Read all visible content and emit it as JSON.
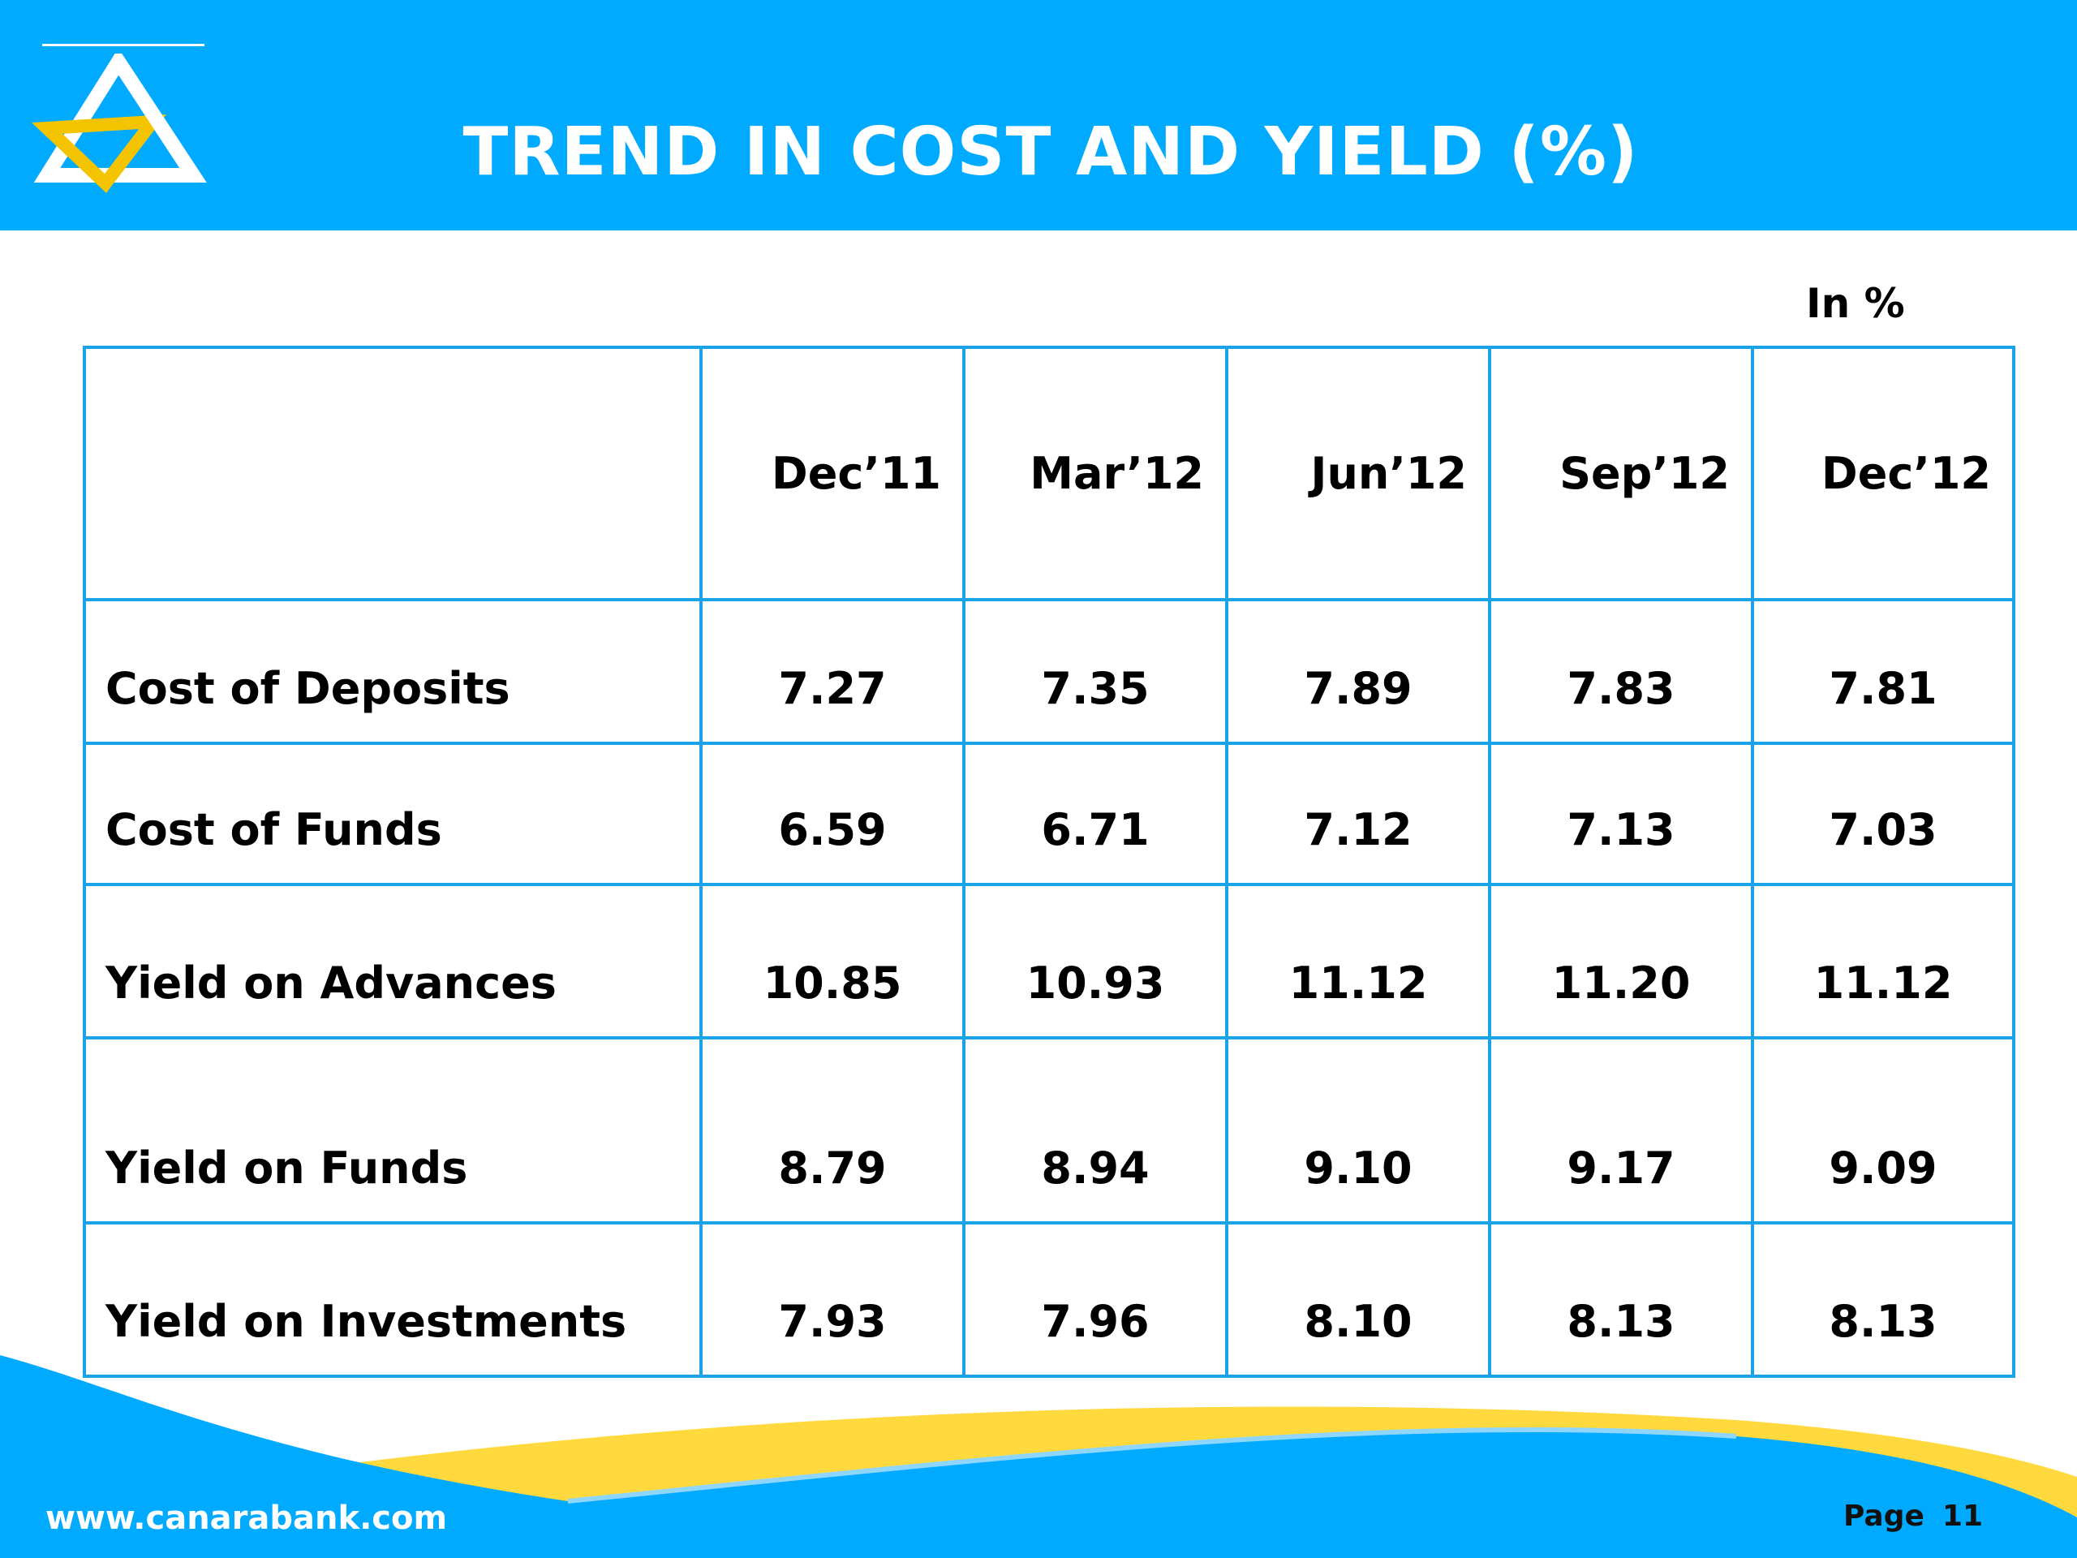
{
  "header": {
    "title": "TREND IN COST AND YIELD (%)"
  },
  "unit_label": "In %",
  "table": {
    "columns": [
      "",
      "Dec’11",
      "Mar’12",
      "Jun’12",
      "Sep’12",
      "Dec’12"
    ],
    "rows": [
      {
        "label": "Cost of Deposits",
        "values": [
          "7.27",
          "7.35",
          "7.89",
          "7.83",
          "7.81"
        ]
      },
      {
        "label": "Cost of Funds",
        "values": [
          "6.59",
          "6.71",
          "7.12",
          "7.13",
          "7.03"
        ]
      },
      {
        "label": "Yield on Advances",
        "values": [
          "10.85",
          "10.93",
          "11.12",
          "11.20",
          "11.12"
        ]
      },
      {
        "label": "Yield on Funds",
        "values": [
          "8.79",
          "8.94",
          "9.10",
          "9.17",
          "9.09"
        ]
      },
      {
        "label": "Yield on Investments",
        "values": [
          "7.93",
          "7.96",
          "8.10",
          "8.13",
          "8.13"
        ]
      }
    ]
  },
  "footer": {
    "website": "www.canarabank.com",
    "page_label": "Page",
    "page_number": "11"
  },
  "colors": {
    "header_blue": "#00aaff",
    "border_blue": "#1aa3e8",
    "wave_yellow": "#ffd93d",
    "logo_yellow": "#f5c400"
  }
}
